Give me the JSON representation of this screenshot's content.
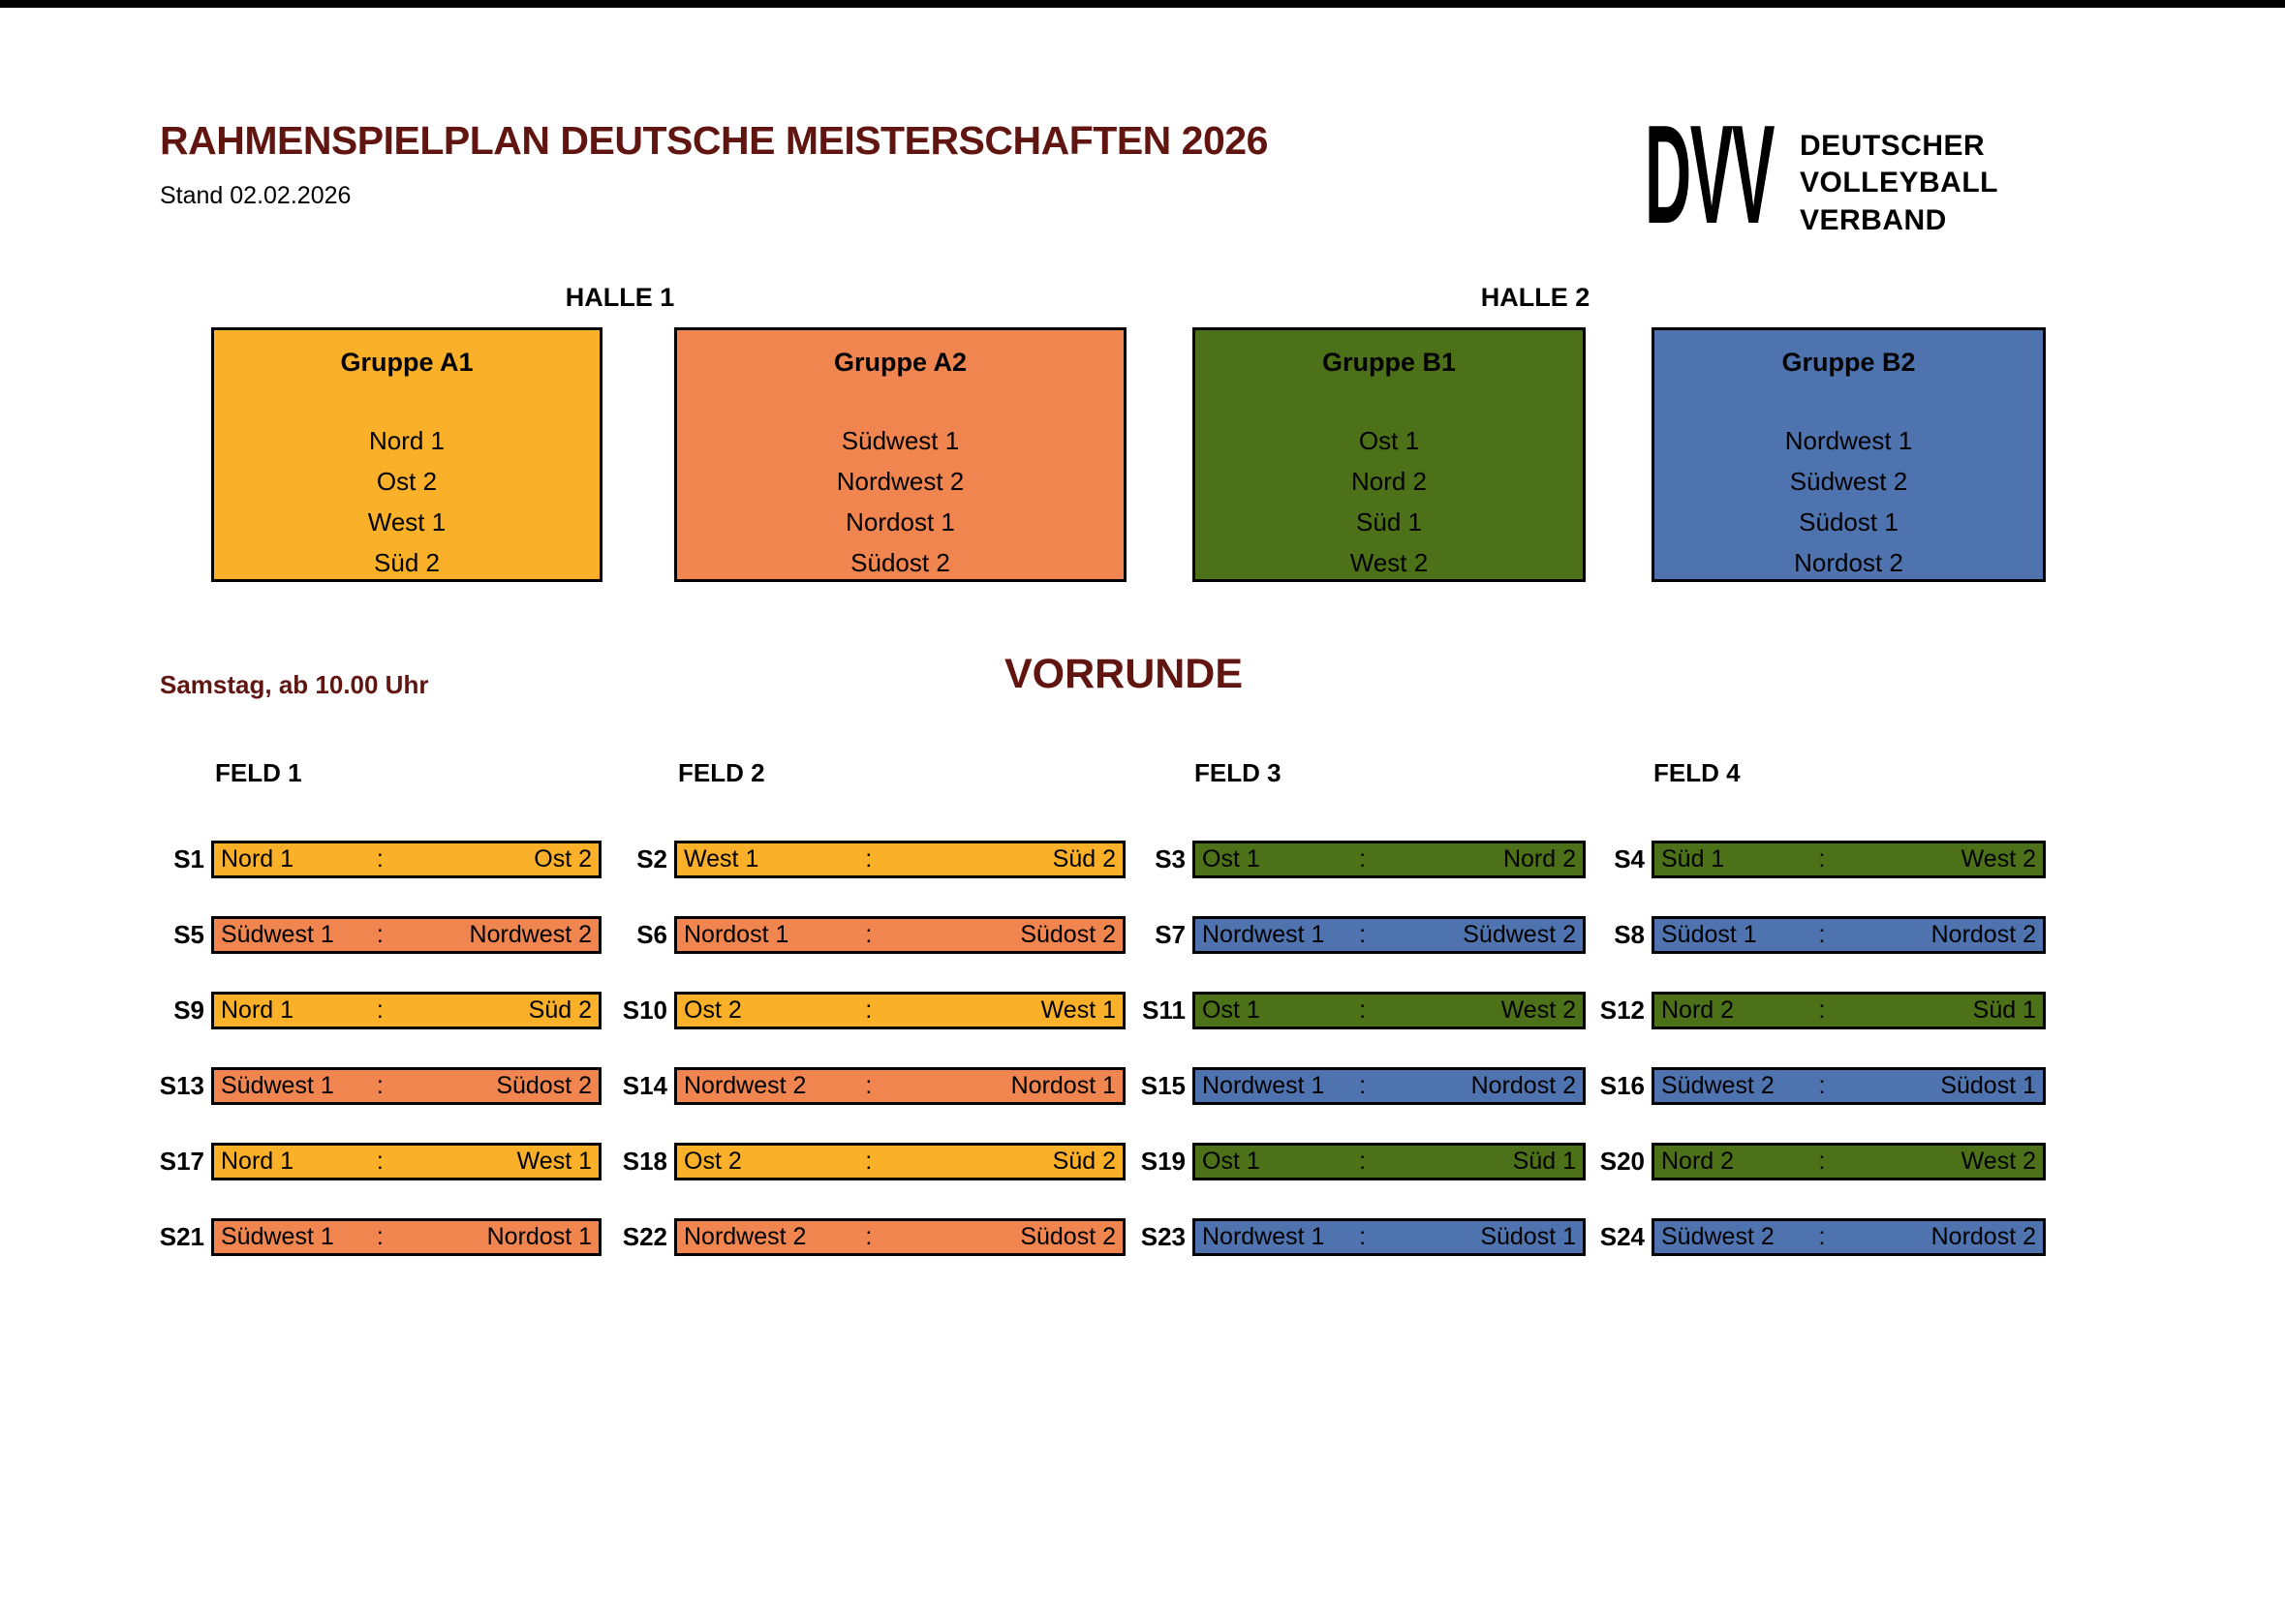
{
  "header": {
    "title": "RAHMENSPIELPLAN DEUTSCHE MEISTERSCHAFTEN 2026",
    "stand": "Stand 02.02.2026",
    "logo": {
      "abbr": "DVV",
      "lines": [
        "DEUTSCHER",
        "VOLLEYBALL",
        "VERBAND"
      ]
    }
  },
  "colors": {
    "maroon": "#611511",
    "amber": "#FBB02A",
    "orange": "#F0854F",
    "green": "#4C7118",
    "blue": "#4E73AF"
  },
  "halls": [
    {
      "label": "HALLE 1",
      "groups": [
        {
          "name": "Gruppe A1",
          "color_key": "amber",
          "teams": [
            "Nord 1",
            "Ost 2",
            "West 1",
            "Süd 2"
          ]
        },
        {
          "name": "Gruppe A2",
          "color_key": "orange",
          "teams": [
            "Südwest 1",
            "Nordwest 2",
            "Nordost 1",
            "Südost 2"
          ]
        }
      ]
    },
    {
      "label": "HALLE 2",
      "groups": [
        {
          "name": "Gruppe B1",
          "color_key": "green",
          "teams": [
            "Ost 1",
            "Nord 2",
            "Süd 1",
            "West 2"
          ]
        },
        {
          "name": "Gruppe B2",
          "color_key": "blue",
          "teams": [
            "Nordwest 1",
            "Südwest 2",
            "Südost 1",
            "Nordost 2"
          ]
        }
      ]
    }
  ],
  "schedule": {
    "day_label": "Samstag, ab 10.00 Uhr",
    "round_title": "VORRUNDE",
    "separator": ":",
    "fields": [
      "FELD 1",
      "FELD 2",
      "FELD 3",
      "FELD 4"
    ],
    "matches": [
      {
        "id": "S1",
        "field": 1,
        "home": "Nord 1",
        "away": "Ost 2",
        "color_key": "amber"
      },
      {
        "id": "S2",
        "field": 2,
        "home": "West 1",
        "away": "Süd 2",
        "color_key": "amber"
      },
      {
        "id": "S3",
        "field": 3,
        "home": "Ost 1",
        "away": "Nord 2",
        "color_key": "green"
      },
      {
        "id": "S4",
        "field": 4,
        "home": "Süd 1",
        "away": "West 2",
        "color_key": "green"
      },
      {
        "id": "S5",
        "field": 1,
        "home": "Südwest 1",
        "away": "Nordwest 2",
        "color_key": "orange"
      },
      {
        "id": "S6",
        "field": 2,
        "home": "Nordost 1",
        "away": "Südost 2",
        "color_key": "orange"
      },
      {
        "id": "S7",
        "field": 3,
        "home": "Nordwest 1",
        "away": "Südwest 2",
        "color_key": "blue"
      },
      {
        "id": "S8",
        "field": 4,
        "home": "Südost 1",
        "away": "Nordost 2",
        "color_key": "blue"
      },
      {
        "id": "S9",
        "field": 1,
        "home": "Nord 1",
        "away": "Süd 2",
        "color_key": "amber"
      },
      {
        "id": "S10",
        "field": 2,
        "home": "Ost 2",
        "away": "West 1",
        "color_key": "amber"
      },
      {
        "id": "S11",
        "field": 3,
        "home": "Ost 1",
        "away": "West 2",
        "color_key": "green"
      },
      {
        "id": "S12",
        "field": 4,
        "home": "Nord 2",
        "away": "Süd 1",
        "color_key": "green"
      },
      {
        "id": "S13",
        "field": 1,
        "home": "Südwest 1",
        "away": "Südost 2",
        "color_key": "orange"
      },
      {
        "id": "S14",
        "field": 2,
        "home": "Nordwest 2",
        "away": "Nordost 1",
        "color_key": "orange"
      },
      {
        "id": "S15",
        "field": 3,
        "home": "Nordwest 1",
        "away": "Nordost 2",
        "color_key": "blue"
      },
      {
        "id": "S16",
        "field": 4,
        "home": "Südwest 2",
        "away": "Südost 1",
        "color_key": "blue"
      },
      {
        "id": "S17",
        "field": 1,
        "home": "Nord 1",
        "away": "West 1",
        "color_key": "amber"
      },
      {
        "id": "S18",
        "field": 2,
        "home": "Ost 2",
        "away": "Süd 2",
        "color_key": "amber"
      },
      {
        "id": "S19",
        "field": 3,
        "home": "Ost 1",
        "away": "Süd 1",
        "color_key": "green"
      },
      {
        "id": "S20",
        "field": 4,
        "home": "Nord 2",
        "away": "West 2",
        "color_key": "green"
      },
      {
        "id": "S21",
        "field": 1,
        "home": "Südwest 1",
        "away": "Nordost 1",
        "color_key": "orange"
      },
      {
        "id": "S22",
        "field": 2,
        "home": "Nordwest 2",
        "away": "Südost 2",
        "color_key": "orange"
      },
      {
        "id": "S23",
        "field": 3,
        "home": "Nordwest 1",
        "away": "Südost 1",
        "color_key": "blue"
      },
      {
        "id": "S24",
        "field": 4,
        "home": "Südwest 2",
        "away": "Nordost 2",
        "color_key": "blue"
      }
    ]
  }
}
